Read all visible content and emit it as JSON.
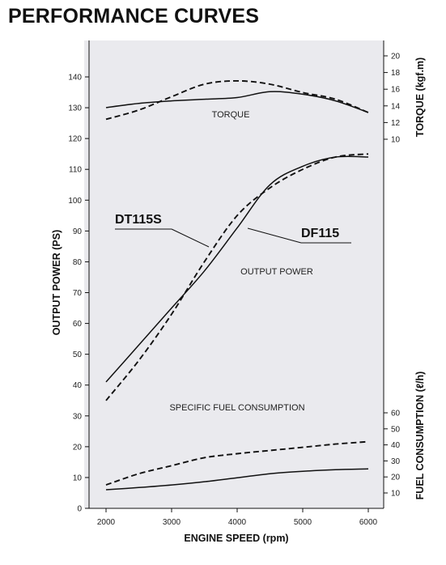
{
  "page": {
    "title": "PERFORMANCE CURVES"
  },
  "chart_data": {
    "type": "line",
    "title": "PERFORMANCE CURVES",
    "xlabel": "ENGINE SPEED (rpm)",
    "xlim": [
      2000,
      6000
    ],
    "x_ticks": [
      2000,
      3000,
      4000,
      5000,
      6000
    ],
    "left_axis": {
      "label": "OUTPUT POWER (PS)",
      "ylim": [
        0,
        140
      ],
      "ticks": [
        0,
        10,
        20,
        30,
        40,
        50,
        60,
        70,
        80,
        90,
        100,
        110,
        120,
        130,
        140
      ]
    },
    "right_axis_top": {
      "label": "TORQUE (kgf.m)",
      "ylim": [
        10,
        20
      ],
      "ticks": [
        10,
        12,
        14,
        16,
        18,
        20
      ]
    },
    "right_axis_bottom": {
      "label": "FUEL CONSUMPTION (ℓ/h)",
      "ylim": [
        10,
        60
      ],
      "ticks": [
        10,
        20,
        30,
        40,
        50,
        60
      ]
    },
    "annotations": [
      "TORQUE",
      "OUTPUT POWER",
      "SPECIFIC FUEL CONSUMPTION"
    ],
    "series": [
      {
        "name": "DF115",
        "style": "solid",
        "color": "#111111",
        "torque": {
          "axis": "right_axis_top",
          "x": [
            2000,
            2500,
            3000,
            3500,
            4000,
            4500,
            5000,
            5500,
            6000
          ],
          "y": [
            13.8,
            14.3,
            14.6,
            14.8,
            15.0,
            15.7,
            15.4,
            14.6,
            13.2
          ]
        },
        "output_power": {
          "axis": "left_axis",
          "x": [
            2000,
            2500,
            3000,
            3500,
            4000,
            4500,
            5000,
            5500,
            6000
          ],
          "y": [
            41,
            53,
            65,
            77,
            91,
            105,
            111,
            114,
            114
          ]
        },
        "fuel_consumption": {
          "axis": "right_axis_bottom",
          "x": [
            2000,
            2500,
            3000,
            3500,
            4000,
            4500,
            5000,
            5500,
            6000
          ],
          "y": [
            12,
            13.4,
            15,
            17,
            19.5,
            22,
            23.5,
            24.5,
            25
          ]
        }
      },
      {
        "name": "DT115S",
        "style": "dashed",
        "color": "#111111",
        "torque": {
          "axis": "right_axis_top",
          "x": [
            2000,
            2500,
            3000,
            3500,
            4000,
            4500,
            5000,
            5500,
            6000
          ],
          "y": [
            12.4,
            13.5,
            15.1,
            16.6,
            17.0,
            16.6,
            15.6,
            14.8,
            13.2
          ]
        },
        "output_power": {
          "axis": "left_axis",
          "x": [
            2000,
            2500,
            3000,
            3500,
            4000,
            4500,
            5000,
            5500,
            6000
          ],
          "y": [
            35,
            48,
            63,
            80,
            95,
            104,
            110,
            114,
            115
          ]
        },
        "fuel_consumption": {
          "axis": "right_axis_bottom",
          "x": [
            2000,
            2500,
            3000,
            3500,
            4000,
            4500,
            5000,
            5500,
            6000
          ],
          "y": [
            15,
            22,
            27,
            32,
            34.5,
            36.5,
            38.5,
            40.5,
            42
          ]
        }
      }
    ]
  }
}
